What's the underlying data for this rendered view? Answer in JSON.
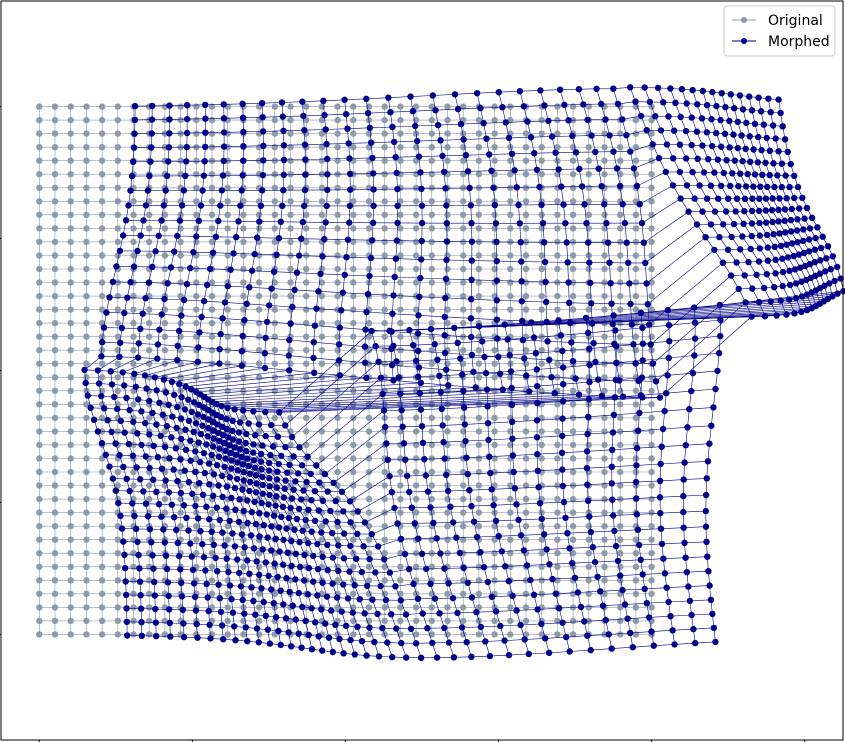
{
  "chart_data": {
    "type": "scatter",
    "title": "",
    "xlabel": "",
    "ylabel": "",
    "grid": false,
    "legend_position": "top-right",
    "axis_ticks_labeled": false,
    "x_range": [
      -0.05,
      1.05
    ],
    "y_range": [
      -0.2,
      1.2
    ],
    "grid_resolution": {
      "cols": 40,
      "rows": 40
    },
    "original_extent": {
      "x": [
        0,
        0.8
      ],
      "y": [
        0,
        1
      ]
    },
    "morph_controls": {
      "stretch_center": [
        0.5,
        0.55
      ],
      "horizontal_shear": 0.28,
      "vertical_shear": 0.22
    },
    "series": [
      {
        "name": "Original",
        "color": "#8e9aaa",
        "marker": "o",
        "connected": true
      },
      {
        "name": "Morphed",
        "color": "#00008b",
        "marker": "o",
        "connected": true
      }
    ]
  }
}
